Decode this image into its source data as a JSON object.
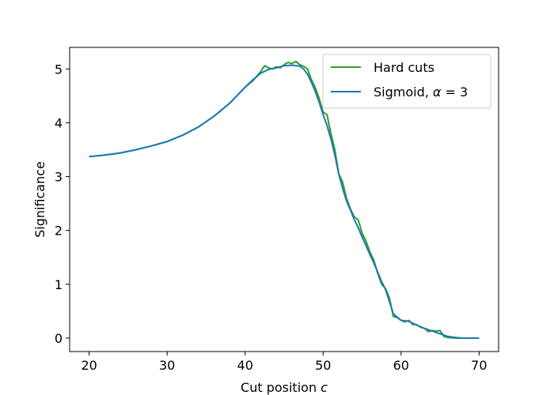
{
  "chart_data": {
    "type": "line",
    "xlabel": "Cut position c",
    "xlabel_parts": [
      "Cut position ",
      "c"
    ],
    "ylabel": "Significance",
    "xlim": [
      17.5,
      72.5
    ],
    "ylim": [
      -0.25,
      5.4
    ],
    "xticks": [
      20,
      30,
      40,
      50,
      60,
      70
    ],
    "yticks": [
      0,
      1,
      2,
      3,
      4,
      5
    ],
    "grid": false,
    "legend_position": "top-right",
    "series": [
      {
        "name": "Hard cuts",
        "color": "#2ca02c",
        "x": [
          20,
          22,
          24,
          26,
          28,
          30,
          32,
          34,
          36,
          38,
          40,
          41,
          42,
          42.5,
          43,
          43.5,
          44,
          44.5,
          45,
          45.5,
          46,
          46.5,
          47,
          47.5,
          48,
          48.5,
          49,
          49.5,
          50,
          50.5,
          51,
          51.5,
          52,
          52.5,
          53,
          53.5,
          54,
          54.5,
          55,
          55.5,
          56,
          56.5,
          57,
          57.5,
          58,
          58.5,
          59,
          59.5,
          60,
          60.5,
          61,
          61.5,
          62,
          62.5,
          63,
          63.5,
          64,
          64.5,
          65,
          65.5,
          66,
          67,
          68,
          69,
          70
        ],
        "y": [
          3.37,
          3.4,
          3.44,
          3.5,
          3.57,
          3.65,
          3.77,
          3.92,
          4.12,
          4.36,
          4.66,
          4.78,
          4.95,
          5.06,
          5.02,
          5.0,
          5.04,
          5.02,
          5.08,
          5.12,
          5.1,
          5.14,
          5.08,
          5.05,
          5.0,
          4.8,
          4.65,
          4.45,
          4.2,
          4.15,
          3.8,
          3.5,
          3.05,
          2.9,
          2.6,
          2.4,
          2.25,
          2.2,
          1.95,
          1.8,
          1.6,
          1.45,
          1.2,
          1.0,
          0.92,
          0.75,
          0.4,
          0.38,
          0.33,
          0.3,
          0.33,
          0.25,
          0.25,
          0.2,
          0.18,
          0.12,
          0.14,
          0.13,
          0.14,
          0.03,
          0.01,
          0.0,
          0.0,
          0.0,
          0.0
        ]
      },
      {
        "name": "Sigmoid, α = 3",
        "name_parts": [
          "Sigmoid, ",
          "α",
          " = 3"
        ],
        "color": "#1f77b4",
        "x": [
          20,
          22,
          24,
          26,
          28,
          30,
          32,
          34,
          36,
          38,
          40,
          41,
          42,
          43,
          44,
          45,
          46,
          47,
          47.5,
          48,
          48.5,
          49,
          49.5,
          50,
          50.5,
          51,
          51.5,
          52,
          52.5,
          53,
          53.5,
          54,
          54.5,
          55,
          55.5,
          56,
          56.5,
          57,
          57.5,
          58,
          58.5,
          59,
          60,
          61,
          62,
          63,
          64,
          65,
          66,
          67,
          68,
          69,
          70
        ],
        "y": [
          3.37,
          3.4,
          3.44,
          3.5,
          3.57,
          3.65,
          3.77,
          3.92,
          4.12,
          4.36,
          4.66,
          4.8,
          4.92,
          4.99,
          5.02,
          5.06,
          5.07,
          5.05,
          5.0,
          4.9,
          4.75,
          4.58,
          4.38,
          4.15,
          3.95,
          3.7,
          3.4,
          3.05,
          2.78,
          2.55,
          2.38,
          2.2,
          2.05,
          1.88,
          1.72,
          1.55,
          1.4,
          1.22,
          1.05,
          0.9,
          0.68,
          0.45,
          0.33,
          0.31,
          0.24,
          0.18,
          0.13,
          0.08,
          0.03,
          0.01,
          0.0,
          0.0,
          0.0
        ]
      }
    ]
  }
}
